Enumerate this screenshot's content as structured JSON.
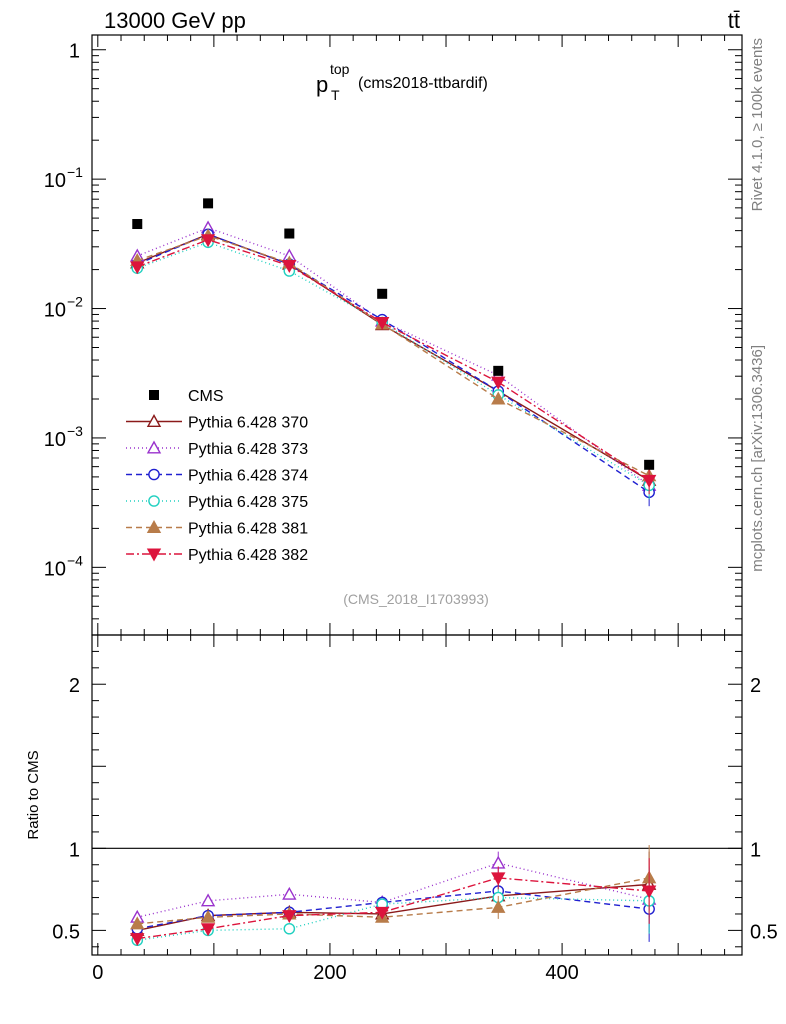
{
  "header": {
    "energy_label": "13000 GeV pp",
    "process_label": "tt̄",
    "title_main": "p",
    "title_sup": "top",
    "title_sub": "T",
    "title_tag": "(cms2018-ttbardif)",
    "side_rivet": "Rivet 4.1.0, ≥ 100k events",
    "side_site": "mcplots.cern.ch [arXiv:1306.3436]",
    "analysis_id": "(CMS_2018_I1703993)"
  },
  "chart_data": {
    "type": "scatter",
    "x": [
      34,
      95,
      165,
      245,
      345,
      475
    ],
    "xlim": [
      -5,
      555
    ],
    "x_ticks": [
      0,
      200,
      400
    ],
    "x_tick_labels": [
      "0",
      "200",
      "400"
    ],
    "main_ylim": [
      3e-05,
      1.3
    ],
    "main_y_ticks": [
      1,
      0.1,
      0.01,
      0.001,
      0.0001
    ],
    "main_y_tick_labels": [
      {
        "base": "1",
        "exp": ""
      },
      {
        "base": "10",
        "exp": "−1"
      },
      {
        "base": "10",
        "exp": "−2"
      },
      {
        "base": "10",
        "exp": "−3"
      },
      {
        "base": "10",
        "exp": "−4"
      }
    ],
    "ratio_ylim": [
      0.35,
      2.3
    ],
    "ratio_y_ticks": [
      0.5,
      1,
      2
    ],
    "ratio_y_tick_labels": [
      "0.5",
      "1",
      "2"
    ],
    "ratio_ylabel": "Ratio to CMS",
    "data": {
      "name": "CMS",
      "values": [
        0.045,
        0.065,
        0.038,
        0.013,
        0.0033,
        0.00062
      ],
      "color": "#000000"
    },
    "series": [
      {
        "name": "Pythia 6.428 370",
        "color": "#8b1a1a",
        "marker": "triangle-open",
        "dash": "",
        "values": [
          0.0225,
          0.0375,
          0.022,
          0.0075,
          0.0023,
          0.00047
        ],
        "ratio": [
          0.5,
          0.59,
          0.61,
          0.6,
          0.71,
          0.78
        ]
      },
      {
        "name": "Pythia 6.428 373",
        "color": "#9a32cd",
        "marker": "triangle-open",
        "dash": "1,3",
        "values": [
          0.0255,
          0.042,
          0.0255,
          0.008,
          0.00305,
          0.00043
        ],
        "ratio": [
          0.58,
          0.68,
          0.72,
          0.67,
          0.91,
          0.69
        ]
      },
      {
        "name": "Pythia 6.428 374",
        "color": "#2020d0",
        "marker": "circle-open",
        "dash": "6,4",
        "values": [
          0.022,
          0.0375,
          0.022,
          0.0082,
          0.0023,
          0.00038
        ],
        "ratio": [
          0.51,
          0.59,
          0.61,
          0.67,
          0.74,
          0.63
        ]
      },
      {
        "name": "Pythia 6.428 375",
        "color": "#20d0c0",
        "marker": "circle-open",
        "dash": "1,3",
        "values": [
          0.0205,
          0.0325,
          0.0195,
          0.0078,
          0.00215,
          0.00043
        ],
        "ratio": [
          0.44,
          0.5,
          0.51,
          0.66,
          0.7,
          0.68
        ]
      },
      {
        "name": "Pythia 6.428 381",
        "color": "#b87c4a",
        "marker": "triangle-filled",
        "dash": "6,4",
        "values": [
          0.0235,
          0.0365,
          0.0225,
          0.0076,
          0.002,
          0.00051
        ],
        "ratio": [
          0.54,
          0.58,
          0.6,
          0.58,
          0.64,
          0.82
        ]
      },
      {
        "name": "Pythia 6.428 382",
        "color": "#dc143c",
        "marker": "triangle-down-filled",
        "dash": "8,3,2,3",
        "values": [
          0.021,
          0.034,
          0.0215,
          0.0078,
          0.0027,
          0.00047
        ],
        "ratio": [
          0.45,
          0.51,
          0.59,
          0.61,
          0.82,
          0.74
        ]
      }
    ],
    "legend_position": "left-middle"
  }
}
